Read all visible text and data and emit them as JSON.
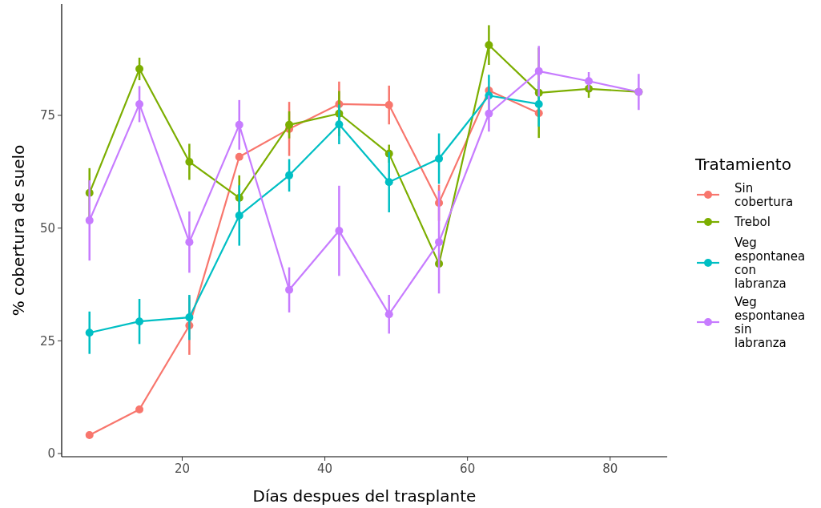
{
  "chart_data": {
    "type": "line",
    "xlabel": "Días despues del trasplante",
    "ylabel": "% cobertura de suelo",
    "legend_title": "Tratamiento",
    "legend": "right",
    "marker": "circle",
    "grid": false,
    "xlim": [
      3.1,
      88
    ],
    "xticks": [
      20,
      40,
      60,
      80
    ],
    "ylim": [
      -0.7,
      99.7
    ],
    "yticks": [
      0,
      25,
      50,
      75
    ],
    "series": [
      {
        "name": "Sin cobertura",
        "color": "#f8766d",
        "x": [
          7,
          14,
          21,
          28,
          35,
          42,
          49,
          56,
          63,
          70
        ],
        "values": [
          4.1,
          9.8,
          28.4,
          65.8,
          72,
          77.5,
          77.3,
          55.6,
          80.5,
          75.5
        ],
        "errors": [
          null,
          null,
          6.5,
          null,
          6,
          5,
          4.3,
          4,
          null,
          null
        ]
      },
      {
        "name": "Trebol",
        "color": "#7cae00",
        "x": [
          7,
          14,
          21,
          28,
          35,
          42,
          49,
          56,
          63,
          70,
          77,
          84
        ],
        "values": [
          57.8,
          85.3,
          64.7,
          56.7,
          72.9,
          75.4,
          66.5,
          42.1,
          90.6,
          80,
          80.9,
          80.2
        ],
        "errors": [
          5.5,
          2.5,
          4,
          5,
          3,
          5,
          2,
          null,
          4.4,
          10,
          2,
          null
        ]
      },
      {
        "name": "Veg espontanea con labranza",
        "color": "#00bfc4",
        "x": [
          7,
          14,
          21,
          28,
          35,
          42,
          49,
          56,
          63,
          70
        ],
        "values": [
          26.8,
          29.3,
          30.2,
          52.8,
          61.7,
          73,
          60.2,
          65.4,
          79.4,
          77.5
        ],
        "errors": [
          4.7,
          5,
          5,
          6.7,
          3.6,
          4.4,
          6.7,
          5.6,
          4.6,
          5
        ]
      },
      {
        "name": "Veg espontanea sin labranza",
        "color": "#c77cff",
        "x": [
          7,
          14,
          21,
          28,
          35,
          42,
          49,
          56,
          63,
          70,
          77,
          84
        ],
        "values": [
          51.7,
          77.5,
          46.9,
          72.9,
          36.3,
          49.4,
          30.9,
          46.9,
          75.4,
          84.8,
          82.6,
          80.2
        ],
        "errors": [
          8.9,
          4,
          6.8,
          5.5,
          5,
          10,
          4.3,
          11.4,
          4,
          5.6,
          2,
          4
        ]
      }
    ]
  }
}
